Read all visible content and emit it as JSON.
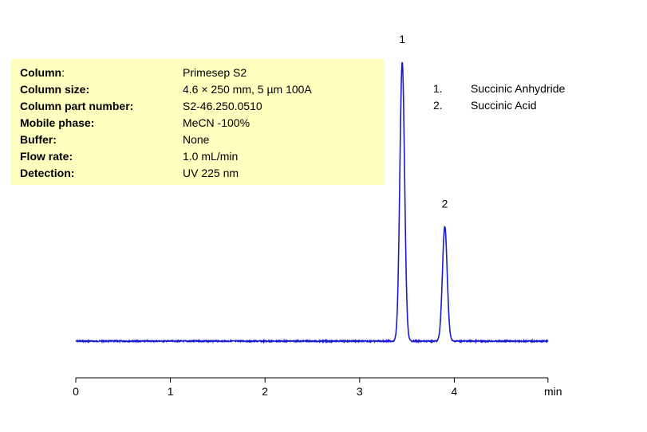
{
  "info": [
    {
      "label": "Column",
      "suffix": ":",
      "value": "Primesep S2"
    },
    {
      "label": "Column size:",
      "suffix": "",
      "value": "4.6 × 250 mm, 5 µm  100A"
    },
    {
      "label": "Column part number:",
      "suffix": "",
      "value": "S2-46.250.0510"
    },
    {
      "label": "Mobile phase:",
      "suffix": "",
      "value": "MeCN -100%"
    },
    {
      "label": "Buffer:",
      "suffix": "",
      "value": "None"
    },
    {
      "label": "Flow rate:",
      "suffix": "",
      "value": "1.0 mL/min"
    },
    {
      "label": "Detection:",
      "suffix": "",
      "value": "UV 225 nm"
    }
  ],
  "legend": [
    {
      "num": "1.",
      "name": "Succinic Anhydride"
    },
    {
      "num": "2.",
      "name": "Succinic Acid"
    }
  ],
  "colors": {
    "trace": "#1a1acc",
    "info_background": "#ffffc0"
  },
  "chart_data": {
    "type": "line",
    "title": "",
    "xlabel": "min",
    "ylabel": "",
    "xlim": [
      0,
      5
    ],
    "xticks": [
      0,
      1,
      2,
      3,
      4
    ],
    "peaks": [
      {
        "label": "1",
        "compound": "Succinic Anhydride",
        "rt": 3.45,
        "height": 1.0,
        "sigma": 0.025
      },
      {
        "label": "2",
        "compound": "Succinic Acid",
        "rt": 3.9,
        "height": 0.41,
        "sigma": 0.025
      }
    ],
    "baseline": 0,
    "grid": false
  }
}
